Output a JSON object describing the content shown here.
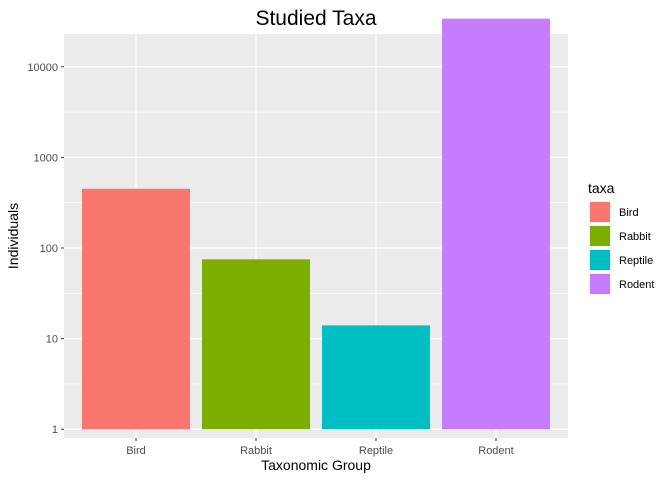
{
  "chart_data": {
    "type": "bar",
    "title": "Studied Taxa",
    "xlabel": "Taxonomic Group",
    "ylabel": "Individuals",
    "y_scale": "log10",
    "ylim": [
      0.8,
      23000
    ],
    "y_ticks": [
      1,
      10,
      100,
      1000,
      10000
    ],
    "y_tick_labels": [
      "1",
      "10",
      "100",
      "1000",
      "10000"
    ],
    "categories": [
      "Bird",
      "Rabbit",
      "Reptile",
      "Rodent"
    ],
    "values": [
      450,
      75,
      14,
      34000
    ],
    "colors": [
      "#F8766D",
      "#7CAE00",
      "#00BFC4",
      "#C77CFF"
    ],
    "panel_background": "#ebebeb",
    "grid": true,
    "grid_color": "#ffffff",
    "legend": {
      "title": "taxa",
      "position": "right",
      "entries": [
        "Bird",
        "Rabbit",
        "Reptile",
        "Rodent"
      ]
    }
  }
}
